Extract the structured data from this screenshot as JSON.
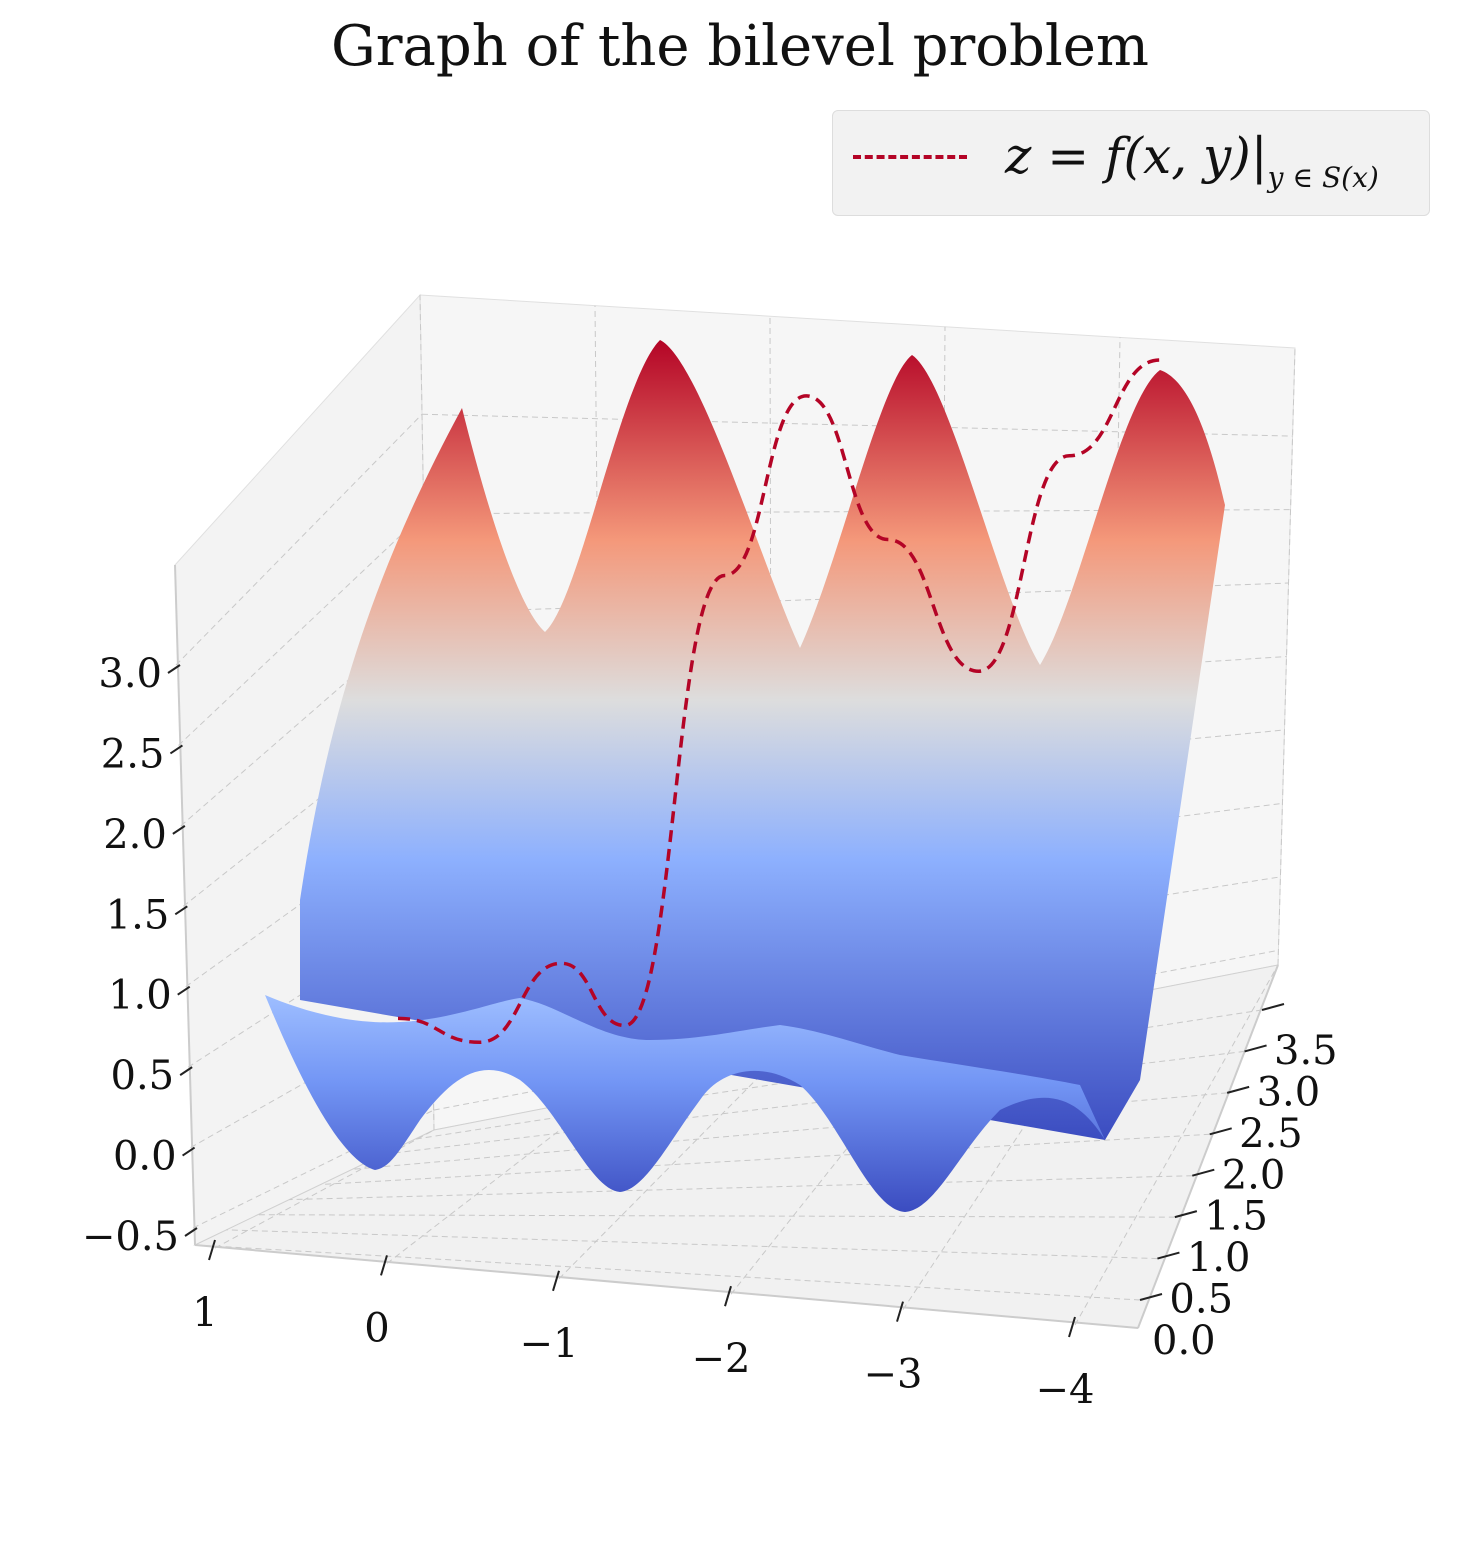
{
  "chart_data": {
    "type": "surface3d",
    "title": "Graph of the bilevel problem",
    "legend": {
      "label": "z = f(x, y)|",
      "label_sub": "y ∈ S(x)",
      "line_color": "#b40426",
      "line_style": "dashed",
      "placement": "top-right"
    },
    "x_axis": {
      "ticks": [
        1,
        0,
        -1,
        -2,
        -3,
        -4
      ],
      "tick_labels": [
        "1",
        "0",
        "−1",
        "−2",
        "−3",
        "−4"
      ],
      "range": [
        1.2,
        -4.2
      ]
    },
    "y_axis": {
      "ticks": [
        0.0,
        0.5,
        1.0,
        1.5,
        2.0,
        2.5,
        3.0,
        3.5
      ],
      "tick_labels": [
        "0.0",
        "0.5",
        "1.0",
        "1.5",
        "2.0",
        "2.5",
        "3.0",
        "3.5"
      ],
      "range": [
        0,
        3.8
      ]
    },
    "z_axis": {
      "ticks": [
        -0.5,
        0.0,
        0.5,
        1.0,
        1.5,
        2.0,
        2.5,
        3.0
      ],
      "tick_labels": [
        "−0.5",
        "0.0",
        "0.5",
        "1.0",
        "1.5",
        "2.0",
        "2.5",
        "3.0"
      ],
      "range": [
        -0.6,
        3.6
      ]
    },
    "colormap": {
      "name": "coolwarm",
      "low": "#3b4cc0",
      "mid": "#dddddd",
      "high": "#b40426"
    },
    "surface_notes": "three deep valleys along the front edge (z≈-0.4) and three tall ridges at the back (z≈3.2); the dashed curve follows the minimizer y in S(x)",
    "curve_points": [
      {
        "x": 0.2,
        "z": 0.55
      },
      {
        "x": -0.25,
        "z": 0.45
      },
      {
        "x": -0.7,
        "z": 0.78
      },
      {
        "x": -1.05,
        "z": 0.52
      },
      {
        "x": -1.6,
        "z": 2.4
      },
      {
        "x": -2.05,
        "z": 3.15
      },
      {
        "x": -2.5,
        "z": 2.55
      },
      {
        "x": -3.0,
        "z": 2.0
      },
      {
        "x": -3.5,
        "z": 2.9
      },
      {
        "x": -4.0,
        "z": 3.3
      }
    ]
  }
}
